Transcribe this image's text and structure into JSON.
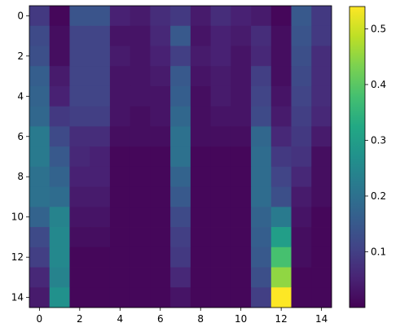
{
  "chart_data": {
    "type": "heatmap",
    "title": "",
    "xlabel": "",
    "ylabel": "",
    "rows": 15,
    "cols": 15,
    "colormap": "viridis",
    "vmin": 0.0,
    "vmax": 0.54,
    "x_ticks": [
      0,
      2,
      4,
      6,
      8,
      10,
      12,
      14
    ],
    "y_ticks": [
      0,
      2,
      4,
      6,
      8,
      10,
      12,
      14
    ],
    "colorbar_ticks": [
      0.1,
      0.2,
      0.3,
      0.4,
      0.5
    ],
    "x_tick_labels": [
      "0",
      "2",
      "4",
      "6",
      "8",
      "10",
      "12",
      "14"
    ],
    "y_tick_labels": [
      "0",
      "2",
      "4",
      "6",
      "8",
      "10",
      "12",
      "14"
    ],
    "colorbar_tick_labels": [
      "0.1",
      "0.2",
      "0.3",
      "0.4",
      "0.5"
    ],
    "values": [
      [
        0.09,
        0.01,
        0.14,
        0.14,
        0.05,
        0.04,
        0.07,
        0.09,
        0.04,
        0.07,
        0.05,
        0.04,
        0.01,
        0.15,
        0.09
      ],
      [
        0.12,
        0.02,
        0.11,
        0.11,
        0.03,
        0.03,
        0.06,
        0.15,
        0.03,
        0.05,
        0.04,
        0.07,
        0.02,
        0.14,
        0.09
      ],
      [
        0.13,
        0.02,
        0.11,
        0.11,
        0.04,
        0.03,
        0.05,
        0.1,
        0.04,
        0.05,
        0.03,
        0.06,
        0.02,
        0.13,
        0.07
      ],
      [
        0.16,
        0.04,
        0.11,
        0.11,
        0.03,
        0.03,
        0.04,
        0.15,
        0.03,
        0.04,
        0.03,
        0.1,
        0.02,
        0.12,
        0.07
      ],
      [
        0.17,
        0.05,
        0.11,
        0.11,
        0.03,
        0.03,
        0.03,
        0.16,
        0.02,
        0.04,
        0.03,
        0.11,
        0.03,
        0.11,
        0.07
      ],
      [
        0.18,
        0.09,
        0.1,
        0.1,
        0.03,
        0.02,
        0.03,
        0.18,
        0.02,
        0.03,
        0.03,
        0.12,
        0.04,
        0.1,
        0.06
      ],
      [
        0.22,
        0.12,
        0.07,
        0.07,
        0.02,
        0.02,
        0.02,
        0.2,
        0.02,
        0.02,
        0.02,
        0.18,
        0.06,
        0.09,
        0.04
      ],
      [
        0.22,
        0.15,
        0.06,
        0.05,
        0.01,
        0.01,
        0.01,
        0.2,
        0.01,
        0.01,
        0.01,
        0.19,
        0.09,
        0.08,
        0.02
      ],
      [
        0.2,
        0.17,
        0.05,
        0.05,
        0.01,
        0.01,
        0.01,
        0.17,
        0.01,
        0.01,
        0.01,
        0.19,
        0.11,
        0.06,
        0.02
      ],
      [
        0.2,
        0.19,
        0.04,
        0.04,
        0.01,
        0.01,
        0.01,
        0.15,
        0.01,
        0.01,
        0.01,
        0.19,
        0.13,
        0.04,
        0.02
      ],
      [
        0.17,
        0.24,
        0.03,
        0.03,
        0.01,
        0.01,
        0.01,
        0.12,
        0.01,
        0.01,
        0.01,
        0.17,
        0.22,
        0.03,
        0.01
      ],
      [
        0.12,
        0.25,
        0.02,
        0.02,
        0.01,
        0.01,
        0.01,
        0.1,
        0.01,
        0.01,
        0.01,
        0.16,
        0.3,
        0.02,
        0.01
      ],
      [
        0.1,
        0.25,
        0.01,
        0.01,
        0.01,
        0.01,
        0.01,
        0.09,
        0.01,
        0.01,
        0.01,
        0.15,
        0.38,
        0.02,
        0.01
      ],
      [
        0.06,
        0.24,
        0.01,
        0.01,
        0.01,
        0.01,
        0.01,
        0.06,
        0.01,
        0.01,
        0.01,
        0.13,
        0.45,
        0.01,
        0.01
      ],
      [
        0.04,
        0.27,
        0.01,
        0.01,
        0.01,
        0.01,
        0.01,
        0.03,
        0.01,
        0.01,
        0.01,
        0.1,
        0.54,
        0.01,
        0.01
      ]
    ]
  }
}
